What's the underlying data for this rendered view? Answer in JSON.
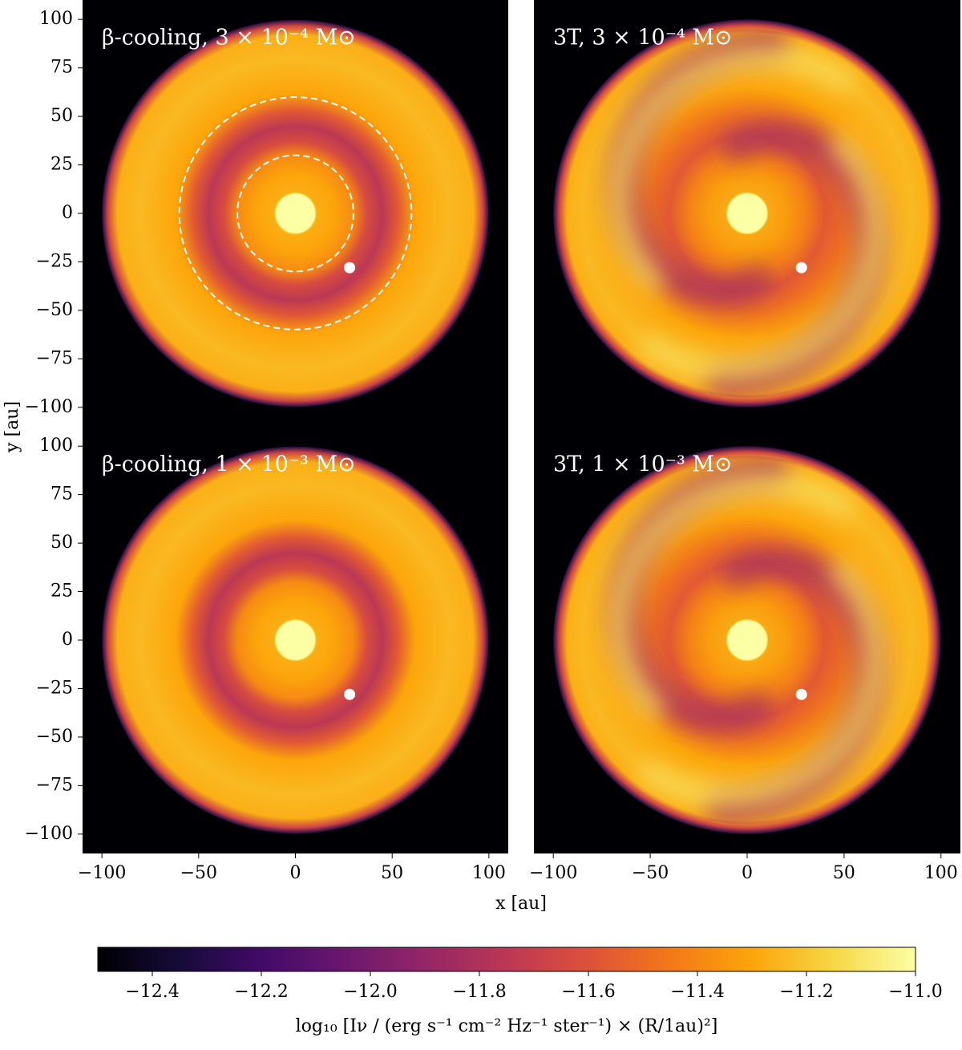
{
  "chart_data": [
    {
      "type": "image",
      "title": "β-cooling, 3 × 10⁻⁴ M⊙",
      "pattern": "rings",
      "xlim": [
        -110,
        110
      ],
      "ylim": [
        -110,
        110
      ],
      "yticks": [
        100,
        75,
        50,
        25,
        0,
        {
          "value": -25,
          "label": "−25"
        },
        {
          "value": -50,
          "label": "−50"
        },
        {
          "value": -75,
          "label": "−75"
        },
        {
          "value": -100,
          "label": "−100"
        }
      ],
      "ylabel": "y [au]",
      "disk_radius": 100,
      "star_radius": 10.5,
      "planet": {
        "x": 28,
        "y": -28
      },
      "circles": [
        30,
        60
      ]
    },
    {
      "type": "image",
      "title": "3T, 3 × 10⁻⁴ M⊙",
      "pattern": "spiral",
      "xlim": [
        -110,
        110
      ],
      "ylim": [
        -110,
        110
      ],
      "disk_radius": 100,
      "star_radius": 10.5,
      "planet": {
        "x": 28,
        "y": -28
      }
    },
    {
      "type": "image",
      "title": "β-cooling, 1 × 10⁻³ M⊙",
      "pattern": "rings",
      "xlim": [
        -110,
        110
      ],
      "ylim": [
        -110,
        110
      ],
      "yticks": [
        100,
        75,
        50,
        25,
        0,
        {
          "value": -25,
          "label": "−25"
        },
        {
          "value": -50,
          "label": "−50"
        },
        {
          "value": -75,
          "label": "−75"
        },
        {
          "value": -100,
          "label": "−100"
        }
      ],
      "xticks": [
        {
          "value": -100,
          "label": "−100"
        },
        {
          "value": -50,
          "label": "−50"
        },
        0,
        50,
        100
      ],
      "xlabel": "x [au]",
      "disk_radius": 100,
      "star_radius": 10.5,
      "planet": {
        "x": 28,
        "y": -28
      }
    },
    {
      "type": "image",
      "title": "3T, 1 × 10⁻³ M⊙",
      "pattern": "spiral",
      "xlim": [
        -110,
        110
      ],
      "ylim": [
        -110,
        110
      ],
      "xticks": [
        {
          "value": -100,
          "label": "−100"
        },
        {
          "value": -50,
          "label": "−50"
        },
        0,
        50,
        100
      ],
      "disk_radius": 100,
      "star_radius": 10.5,
      "planet": {
        "x": 28,
        "y": -28
      }
    },
    {
      "type": "colorbar",
      "label": "log₁₀ [Iν / (erg s⁻¹ cm⁻² Hz⁻¹ ster⁻¹) × (R/1au)²]",
      "xlim": [
        -12.5,
        -11.0
      ],
      "xticks": [
        {
          "value": -12.4,
          "label": "−12.4"
        },
        {
          "value": -12.2,
          "label": "−12.2"
        },
        {
          "value": -12.0,
          "label": "−12.0"
        },
        {
          "value": -11.8,
          "label": "−11.8"
        },
        {
          "value": -11.6,
          "label": "−11.6"
        },
        {
          "value": -11.4,
          "label": "−11.4"
        },
        {
          "value": -11.2,
          "label": "−11.2"
        },
        {
          "value": -11.0,
          "label": "−11.0"
        }
      ],
      "colors": [
        "#000004",
        "#160b39",
        "#420a68",
        "#6a176e",
        "#932667",
        "#bc3754",
        "#dd513a",
        "#f37819",
        "#fca50a",
        "#f6d746",
        "#fcffa4"
      ]
    }
  ]
}
